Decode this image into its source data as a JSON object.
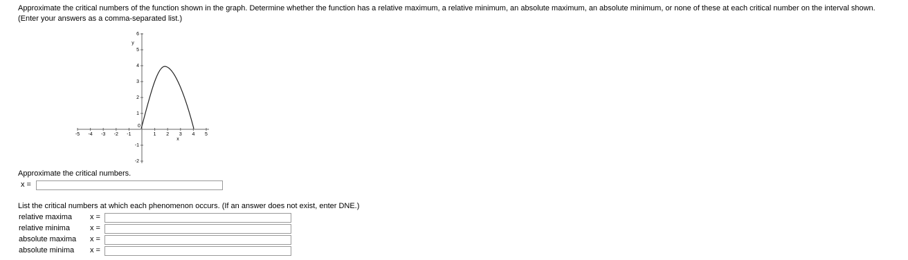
{
  "question": "Approximate the critical numbers of the function shown in the graph. Determine whether the function has a relative maximum, a relative minimum, an absolute maximum, an absolute minimum, or none of these at each critical number on the interval shown. (Enter your answers as a comma-separated list.)",
  "graph": {
    "x_label": "x",
    "y_label": "y",
    "origin_label": "0",
    "x_ticks": [
      -5,
      -4,
      -3,
      -2,
      -1,
      1,
      2,
      3,
      4,
      5
    ],
    "y_ticks": [
      -2,
      -1,
      1,
      2,
      3,
      4,
      5,
      6
    ]
  },
  "part1": {
    "prompt": "Approximate the critical numbers.",
    "x_label": "x ="
  },
  "part2": {
    "prompt": "List the critical numbers at which each phenomenon occurs. (If an answer does not exist, enter DNE.)",
    "rows": [
      {
        "label": "relative maxima",
        "x_label": "x ="
      },
      {
        "label": "relative minima",
        "x_label": "x ="
      },
      {
        "label": "absolute maxima",
        "x_label": "x ="
      },
      {
        "label": "absolute minima",
        "x_label": "x ="
      }
    ]
  }
}
